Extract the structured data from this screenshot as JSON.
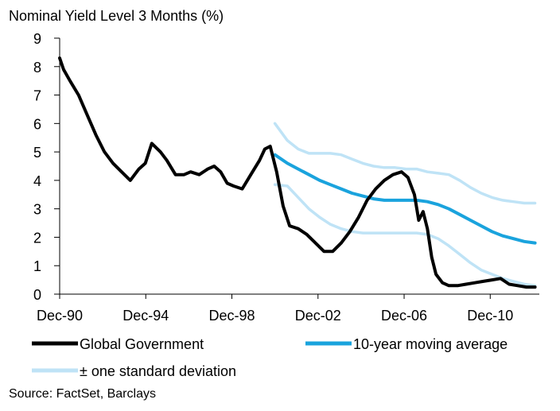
{
  "chart_data": {
    "type": "line",
    "title": "Nominal Yield Level 3 Months (%)",
    "source": "Source: FactSet, Barclays",
    "ylim": [
      0,
      9
    ],
    "xlim": [
      1990.92,
      2013.2
    ],
    "y_ticks": [
      0,
      1,
      2,
      3,
      4,
      5,
      6,
      7,
      8,
      9
    ],
    "x_ticks": [
      {
        "label": "Dec-90",
        "value": 1990.92
      },
      {
        "label": "Dec-94",
        "value": 1994.92
      },
      {
        "label": "Dec-98",
        "value": 1998.92
      },
      {
        "label": "Dec-02",
        "value": 2002.92
      },
      {
        "label": "Dec-06",
        "value": 2006.92
      },
      {
        "label": "Dec-10",
        "value": 2010.92
      }
    ],
    "grid": false,
    "legend_position": "bottom",
    "colors": {
      "global": "#000000",
      "moving_avg": "#1AA3DD",
      "std_band": "#BFE3F6"
    },
    "series": [
      {
        "name": "Global Government",
        "key": "global",
        "x": [
          1990.92,
          1991.1,
          1991.4,
          1991.8,
          1992.2,
          1992.6,
          1993.0,
          1993.4,
          1993.8,
          1994.2,
          1994.6,
          1994.9,
          1995.2,
          1995.6,
          1995.9,
          1996.3,
          1996.7,
          1997.0,
          1997.4,
          1997.8,
          1998.1,
          1998.4,
          1998.7,
          1999.0,
          1999.4,
          1999.8,
          2000.2,
          2000.45,
          2000.7,
          2001.0,
          2001.3,
          2001.6,
          2002.0,
          2002.4,
          2002.8,
          2003.2,
          2003.6,
          2004.0,
          2004.4,
          2004.8,
          2005.2,
          2005.6,
          2006.0,
          2006.4,
          2006.8,
          2007.1,
          2007.4,
          2007.6,
          2007.8,
          2008.0,
          2008.2,
          2008.4,
          2008.7,
          2009.0,
          2009.4,
          2009.8,
          2010.2,
          2010.6,
          2011.0,
          2011.4,
          2011.8,
          2012.2,
          2012.6,
          2013.0
        ],
        "y": [
          8.3,
          7.9,
          7.5,
          7.0,
          6.3,
          5.6,
          5.0,
          4.6,
          4.3,
          4.0,
          4.4,
          4.6,
          5.3,
          5.0,
          4.7,
          4.2,
          4.2,
          4.3,
          4.2,
          4.4,
          4.5,
          4.3,
          3.9,
          3.8,
          3.7,
          4.2,
          4.7,
          5.1,
          5.2,
          4.3,
          3.1,
          2.4,
          2.3,
          2.1,
          1.8,
          1.5,
          1.5,
          1.8,
          2.2,
          2.7,
          3.3,
          3.7,
          4.0,
          4.2,
          4.3,
          4.1,
          3.5,
          2.6,
          2.9,
          2.3,
          1.3,
          0.7,
          0.4,
          0.3,
          0.3,
          0.35,
          0.4,
          0.45,
          0.5,
          0.55,
          0.35,
          0.3,
          0.25,
          0.25
        ]
      },
      {
        "name": "10-year moving average",
        "key": "moving_avg",
        "x": [
          2000.92,
          2001.5,
          2002.0,
          2002.5,
          2003.0,
          2003.5,
          2004.0,
          2004.5,
          2005.0,
          2005.5,
          2006.0,
          2006.5,
          2007.0,
          2007.5,
          2008.0,
          2008.5,
          2009.0,
          2009.5,
          2010.0,
          2010.5,
          2011.0,
          2011.5,
          2012.0,
          2012.5,
          2013.0
        ],
        "y": [
          4.9,
          4.6,
          4.4,
          4.2,
          4.0,
          3.85,
          3.7,
          3.55,
          3.45,
          3.35,
          3.3,
          3.3,
          3.3,
          3.3,
          3.25,
          3.15,
          3.0,
          2.8,
          2.6,
          2.4,
          2.2,
          2.05,
          1.95,
          1.85,
          1.8
        ]
      },
      {
        "name": "± one standard deviation",
        "key": "std_upper",
        "x": [
          2000.92,
          2001.5,
          2002.0,
          2002.5,
          2003.0,
          2003.5,
          2004.0,
          2004.5,
          2005.0,
          2005.5,
          2006.0,
          2006.5,
          2007.0,
          2007.5,
          2008.0,
          2008.5,
          2009.0,
          2009.5,
          2010.0,
          2010.5,
          2011.0,
          2011.5,
          2012.0,
          2012.5,
          2013.0
        ],
        "y": [
          6.0,
          5.4,
          5.1,
          4.95,
          4.95,
          4.95,
          4.9,
          4.75,
          4.6,
          4.5,
          4.45,
          4.45,
          4.4,
          4.4,
          4.3,
          4.25,
          4.2,
          4.0,
          3.75,
          3.55,
          3.4,
          3.3,
          3.25,
          3.2,
          3.2
        ]
      },
      {
        "name": "",
        "key": "std_lower",
        "x": [
          2000.92,
          2001.5,
          2002.0,
          2002.5,
          2003.0,
          2003.5,
          2004.0,
          2004.5,
          2005.0,
          2005.5,
          2006.0,
          2006.5,
          2007.0,
          2007.5,
          2008.0,
          2008.5,
          2009.0,
          2009.5,
          2010.0,
          2010.5,
          2011.0,
          2011.5,
          2012.0,
          2012.5,
          2013.0
        ],
        "y": [
          3.85,
          3.8,
          3.4,
          3.0,
          2.7,
          2.45,
          2.3,
          2.2,
          2.15,
          2.15,
          2.15,
          2.15,
          2.15,
          2.15,
          2.1,
          1.95,
          1.7,
          1.4,
          1.1,
          0.85,
          0.7,
          0.55,
          0.45,
          0.35,
          0.3
        ]
      }
    ],
    "legend": [
      {
        "label": "Global Government",
        "key": "global"
      },
      {
        "label": "10-year moving average",
        "key": "moving_avg"
      },
      {
        "label": "± one standard deviation",
        "key": "std_band"
      }
    ]
  }
}
